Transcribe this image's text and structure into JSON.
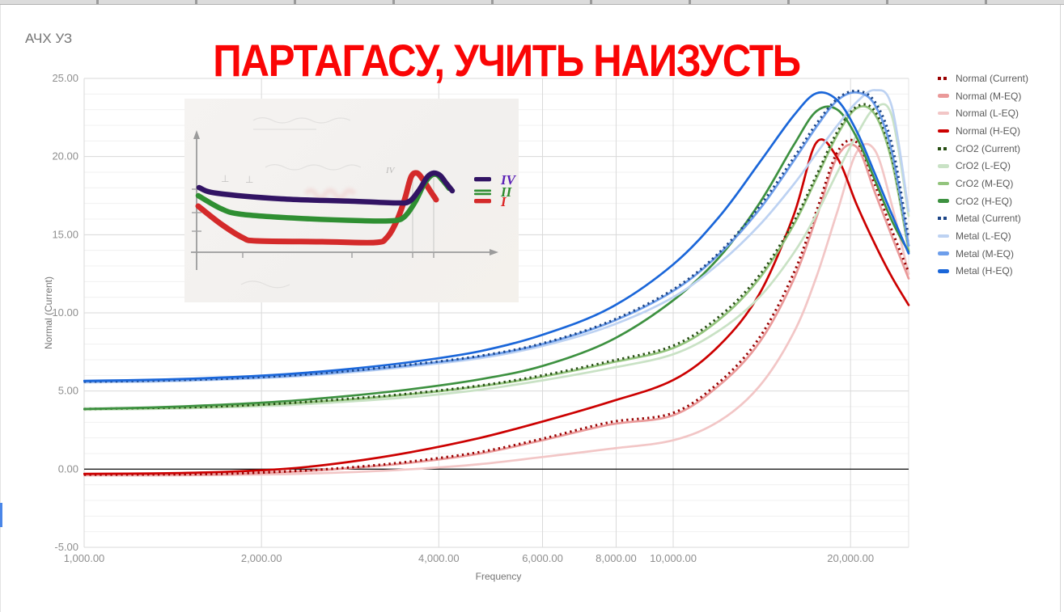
{
  "chart": {
    "title": "АЧХ УЗ",
    "overlay_title": "ПАРТАГАСУ, УЧИТЬ НАИЗУСТЬ",
    "overlay_color": "#fa0505",
    "x_axis_title": "Frequency",
    "y_axis_title": "Normal (Current)"
  },
  "legend": {
    "items": [
      {
        "label": "Normal (Current)",
        "color": "#990000",
        "style": "dotted"
      },
      {
        "label": "Normal (M-EQ)",
        "color": "#ea9999",
        "style": "solid"
      },
      {
        "label": "Normal (L-EQ)",
        "color": "#f2c6c6",
        "style": "solid"
      },
      {
        "label": "Normal (H-EQ)",
        "color": "#cc0000",
        "style": "solid"
      },
      {
        "label": "CrO2 (Current)",
        "color": "#274e13",
        "style": "dotted"
      },
      {
        "label": "CrO2 (L-EQ)",
        "color": "#c9e2c5",
        "style": "solid"
      },
      {
        "label": "CrO2 (M-EQ)",
        "color": "#93c47d",
        "style": "solid"
      },
      {
        "label": "CrO2 (H-EQ)",
        "color": "#3d9140",
        "style": "solid"
      },
      {
        "label": "Metal (Current)",
        "color": "#1c4587",
        "style": "dotted"
      },
      {
        "label": "Metal (L-EQ)",
        "color": "#bdd2f2",
        "style": "solid"
      },
      {
        "label": "Metal (M-EQ)",
        "color": "#6d9eeb",
        "style": "solid"
      },
      {
        "label": "Metal (H-EQ)",
        "color": "#1a66d9",
        "style": "solid"
      }
    ]
  },
  "chart_data": {
    "type": "line",
    "x_scale": "log",
    "xlim": [
      1000,
      25100
    ],
    "ylim": [
      -5,
      25
    ],
    "y_major_step": 5,
    "y_minor_step": 1,
    "grid": true,
    "legend_position": "right",
    "x_ticks": [
      {
        "f": 1000,
        "label": "1,000.00"
      },
      {
        "f": 2000,
        "label": "2,000.00"
      },
      {
        "f": 4000,
        "label": "4,000.00"
      },
      {
        "f": 6000,
        "label": "6,000.00"
      },
      {
        "f": 8000,
        "label": "8,000.00"
      },
      {
        "f": 10000,
        "label": "10,000.00"
      },
      {
        "f": 20000,
        "label": "20,000.00"
      }
    ],
    "y_ticks": [
      {
        "v": 25,
        "label": "25.00"
      },
      {
        "v": 20,
        "label": "20.00"
      },
      {
        "v": 15,
        "label": "15.00"
      },
      {
        "v": 10,
        "label": "10.00"
      },
      {
        "v": 5,
        "label": "5.00"
      },
      {
        "v": 0,
        "label": "0.00"
      },
      {
        "v": -5,
        "label": "-5.00"
      }
    ],
    "x": [
      1000,
      1300,
      1700,
      2200,
      2800,
      3600,
      4700,
      6000,
      7800,
      10000,
      12000,
      14000,
      16000,
      17500,
      19000,
      20500,
      22000,
      23500,
      25100
    ],
    "series": [
      {
        "name": "Normal (Current)",
        "color": "#990000",
        "style": "dotted",
        "z": 3,
        "values": [
          -0.35,
          -0.34,
          -0.3,
          -0.15,
          0.1,
          0.5,
          1.1,
          1.95,
          3.0,
          3.6,
          5.6,
          8.4,
          12.5,
          16.5,
          20.3,
          20.9,
          18.2,
          15.3,
          12.6
        ]
      },
      {
        "name": "Normal (M-EQ)",
        "color": "#ea9999",
        "style": "solid",
        "z": 2,
        "values": [
          -0.35,
          -0.35,
          -0.32,
          -0.18,
          0.05,
          0.42,
          1.0,
          1.85,
          2.85,
          3.45,
          5.4,
          8.1,
          12.1,
          16.1,
          20.0,
          20.6,
          17.7,
          14.9,
          12.2
        ]
      },
      {
        "name": "Normal (L-EQ)",
        "color": "#f2c6c6",
        "style": "solid",
        "z": 1,
        "values": [
          -0.4,
          -0.4,
          -0.38,
          -0.32,
          -0.2,
          0.0,
          0.32,
          0.78,
          1.3,
          1.85,
          3.1,
          5.3,
          8.7,
          12.3,
          16.5,
          20.3,
          20.4,
          16.9,
          12.5
        ]
      },
      {
        "name": "Normal (H-EQ)",
        "color": "#cc0000",
        "style": "solid",
        "z": 4,
        "values": [
          -0.3,
          -0.27,
          -0.18,
          0.02,
          0.45,
          1.1,
          2.0,
          3.05,
          4.3,
          5.7,
          7.95,
          11.2,
          16.2,
          20.9,
          19.9,
          16.9,
          14.4,
          12.3,
          10.5
        ]
      },
      {
        "name": "CrO2 (Current)",
        "color": "#274e13",
        "style": "dotted",
        "z": 7,
        "values": [
          3.85,
          3.92,
          4.02,
          4.22,
          4.5,
          4.85,
          5.35,
          6.0,
          6.9,
          7.9,
          9.8,
          12.4,
          15.8,
          18.8,
          21.6,
          23.2,
          22.9,
          20.0,
          14.3
        ]
      },
      {
        "name": "CrO2 (L-EQ)",
        "color": "#c9e2c5",
        "style": "solid",
        "z": 5,
        "values": [
          3.8,
          3.85,
          3.95,
          4.1,
          4.32,
          4.62,
          5.08,
          5.68,
          6.45,
          7.35,
          8.9,
          11.0,
          13.8,
          16.3,
          19.0,
          21.4,
          23.1,
          22.6,
          16.2
        ]
      },
      {
        "name": "CrO2 (M-EQ)",
        "color": "#93c47d",
        "style": "solid",
        "z": 6,
        "values": [
          3.85,
          3.9,
          4.0,
          4.2,
          4.45,
          4.8,
          5.3,
          5.92,
          6.8,
          7.75,
          9.6,
          12.2,
          15.6,
          18.6,
          21.4,
          23.1,
          22.7,
          19.7,
          14.0
        ]
      },
      {
        "name": "CrO2 (H-EQ)",
        "color": "#3d9140",
        "style": "solid",
        "z": 8,
        "values": [
          3.85,
          3.95,
          4.12,
          4.35,
          4.68,
          5.12,
          5.75,
          6.6,
          8.2,
          10.8,
          13.6,
          17.0,
          20.7,
          22.9,
          23.0,
          21.2,
          18.5,
          15.9,
          13.9
        ]
      },
      {
        "name": "Metal (Current)",
        "color": "#1c4587",
        "style": "dotted",
        "z": 11,
        "values": [
          5.6,
          5.66,
          5.78,
          5.98,
          6.28,
          6.7,
          7.25,
          8.05,
          9.45,
          11.5,
          13.9,
          16.8,
          19.9,
          22.1,
          23.7,
          24.2,
          23.5,
          20.8,
          14.8
        ]
      },
      {
        "name": "Metal (L-EQ)",
        "color": "#bdd2f2",
        "style": "solid",
        "z": 9,
        "values": [
          5.55,
          5.6,
          5.72,
          5.9,
          6.18,
          6.58,
          7.1,
          7.88,
          9.15,
          11.0,
          13.2,
          15.6,
          18.2,
          20.2,
          22.0,
          23.5,
          24.25,
          23.2,
          16.5
        ]
      },
      {
        "name": "Metal (M-EQ)",
        "color": "#6d9eeb",
        "style": "solid",
        "z": 10,
        "values": [
          5.6,
          5.65,
          5.77,
          5.96,
          6.25,
          6.66,
          7.2,
          8.0,
          9.38,
          11.4,
          13.8,
          16.6,
          19.7,
          21.9,
          23.6,
          24.1,
          23.3,
          20.3,
          14.3
        ]
      },
      {
        "name": "Metal (H-EQ)",
        "color": "#1a66d9",
        "style": "solid",
        "z": 12,
        "values": [
          5.65,
          5.72,
          5.86,
          6.08,
          6.4,
          6.86,
          7.55,
          8.6,
          10.3,
          13.1,
          16.2,
          19.6,
          22.6,
          24.05,
          23.6,
          21.6,
          18.9,
          16.3,
          13.8
        ]
      }
    ]
  },
  "inset": {
    "legend": [
      {
        "numeral": "IV",
        "color": "#5b21b6",
        "dash_color": "#321464",
        "dash_style": "single"
      },
      {
        "numeral": "II",
        "color": "#2e8b2e",
        "dash_color": "#2f8f32",
        "dash_style": "double"
      },
      {
        "numeral": "I",
        "color": "#dc2626",
        "dash_color": "#d42a2a",
        "dash_style": "single"
      }
    ],
    "curves": [
      {
        "name": "I",
        "color": "#d42a2a",
        "width": 7,
        "points": [
          [
            17,
            133
          ],
          [
            45,
            155
          ],
          [
            72,
            172
          ],
          [
            90,
            176
          ],
          [
            170,
            177
          ],
          [
            235,
            178
          ],
          [
            250,
            172
          ],
          [
            262,
            152
          ],
          [
            272,
            125
          ],
          [
            280,
            97
          ],
          [
            287,
            92
          ],
          [
            294,
            99
          ],
          [
            303,
            113
          ],
          [
            311,
            125
          ]
        ]
      },
      {
        "name": "II",
        "color": "#2f8f32",
        "width": 6.5,
        "points": [
          [
            17,
            120
          ],
          [
            45,
            136
          ],
          [
            70,
            143
          ],
          [
            140,
            148
          ],
          [
            220,
            151
          ],
          [
            258,
            151
          ],
          [
            272,
            146
          ],
          [
            285,
            128
          ],
          [
            296,
            106
          ],
          [
            305,
            95
          ],
          [
            312,
            94
          ],
          [
            319,
            101
          ],
          [
            327,
            111
          ]
        ]
      },
      {
        "name": "IV",
        "color": "#321464",
        "width": 6.5,
        "points": [
          [
            18,
            110
          ],
          [
            40,
            117
          ],
          [
            120,
            124
          ],
          [
            210,
            127
          ],
          [
            262,
            129
          ],
          [
            278,
            127
          ],
          [
            290,
            113
          ],
          [
            300,
            97
          ],
          [
            308,
            92
          ],
          [
            316,
            95
          ],
          [
            323,
            104
          ],
          [
            331,
            114
          ]
        ]
      }
    ]
  }
}
